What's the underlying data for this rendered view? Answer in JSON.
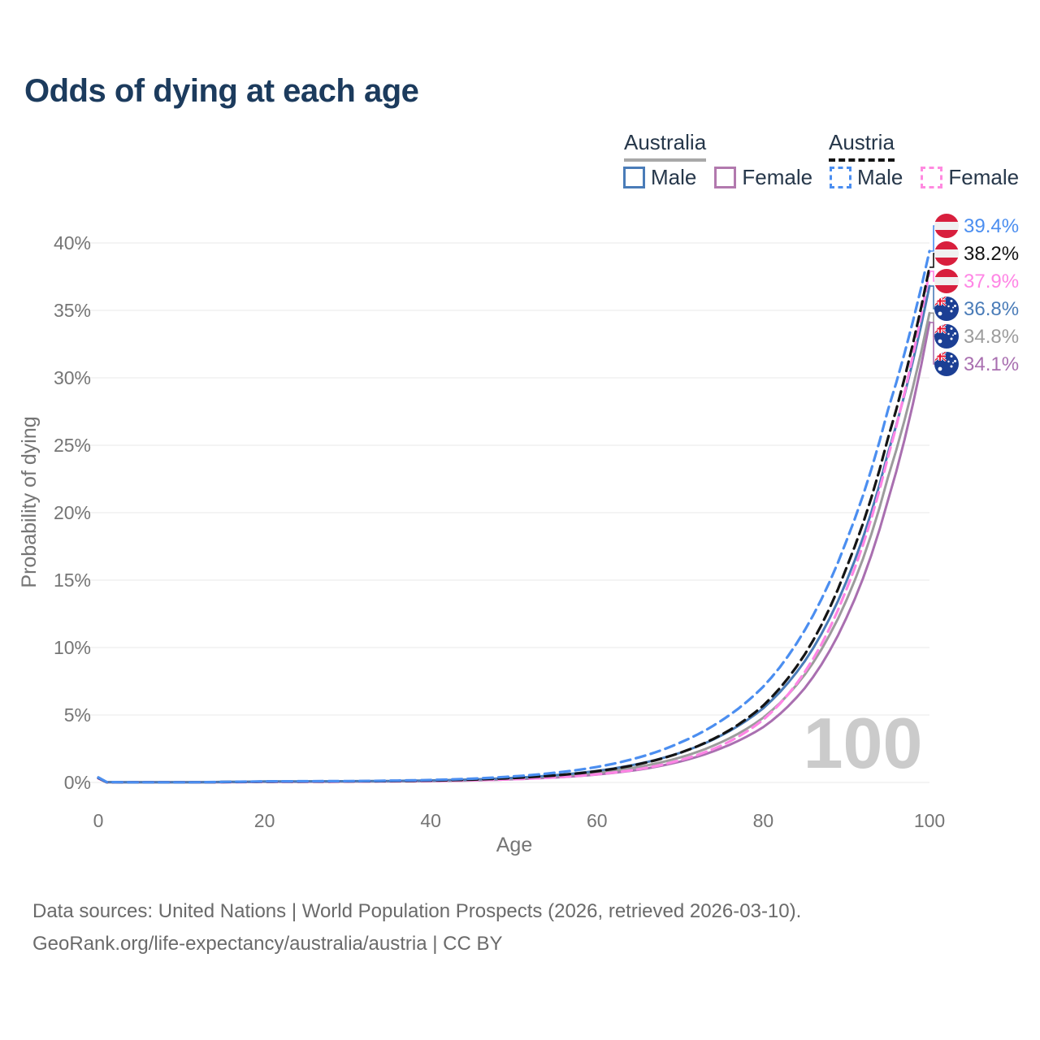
{
  "title": "Odds of dying at each age",
  "watermark": "100",
  "legend": {
    "groups": [
      {
        "country": "Australia",
        "line_style": "solid",
        "underline_color": "#a8a8a8",
        "items": [
          {
            "label": "Male",
            "color": "#4a7cb8"
          },
          {
            "label": "Female",
            "color": "#b279ae"
          }
        ]
      },
      {
        "country": "Austria",
        "line_style": "dashed",
        "underline_color": "#141414",
        "items": [
          {
            "label": "Male",
            "color": "#4b8ef0"
          },
          {
            "label": "Female",
            "color": "#ff8ae0"
          }
        ]
      }
    ]
  },
  "footer": {
    "line1": "Data sources: United Nations | World Population Prospects (2026, retrieved 2026-03-10).",
    "line2": "GeoRank.org/life-expectancy/australia/austria | CC BY"
  },
  "chart_data": {
    "type": "line",
    "title": "Odds of dying at each age",
    "xlabel": "Age",
    "ylabel": "Probability of dying",
    "x_ticks": [
      0,
      20,
      40,
      60,
      80,
      100
    ],
    "y_ticks": [
      "0%",
      "5%",
      "10%",
      "15%",
      "20%",
      "25%",
      "30%",
      "35%",
      "40%"
    ],
    "xlim": [
      0,
      100
    ],
    "ylim_percent": [
      0,
      42
    ],
    "grid": "horizontal",
    "legend_position": "top-right",
    "age_cursor": 100,
    "ages": [
      0,
      1,
      5,
      10,
      15,
      20,
      25,
      30,
      35,
      40,
      45,
      50,
      55,
      60,
      65,
      70,
      75,
      80,
      85,
      90,
      95,
      100
    ],
    "series": [
      {
        "name": "Austria - Male",
        "country": "Austria",
        "sex": "Male",
        "color": "#4b8ef0",
        "dashed": true,
        "flag": "austria",
        "end_label": "39.4%",
        "values": [
          0.36,
          0.03,
          0.01,
          0.01,
          0.04,
          0.08,
          0.09,
          0.1,
          0.13,
          0.18,
          0.28,
          0.45,
          0.72,
          1.15,
          1.85,
          2.95,
          4.6,
          7.1,
          11.3,
          17.9,
          27.6,
          39.4
        ]
      },
      {
        "name": "Austria - Both sexes",
        "country": "Austria",
        "sex": "Both",
        "color": "#141414",
        "dashed": true,
        "flag": "austria",
        "end_label": "38.2%",
        "values": [
          0.33,
          0.02,
          0.01,
          0.01,
          0.03,
          0.06,
          0.07,
          0.08,
          0.1,
          0.14,
          0.21,
          0.33,
          0.52,
          0.83,
          1.35,
          2.2,
          3.55,
          5.7,
          9.5,
          15.9,
          25.5,
          38.2
        ]
      },
      {
        "name": "Austria - Female",
        "country": "Austria",
        "sex": "Female",
        "color": "#ff85e5",
        "dashed": true,
        "flag": "austria",
        "end_label": "37.9%",
        "values": [
          0.3,
          0.02,
          0.01,
          0.01,
          0.02,
          0.04,
          0.05,
          0.06,
          0.08,
          0.1,
          0.16,
          0.24,
          0.38,
          0.6,
          0.98,
          1.65,
          2.75,
          4.65,
          8.2,
          14.3,
          24.1,
          37.9
        ]
      },
      {
        "name": "Australia - Male",
        "country": "Australia",
        "sex": "Male",
        "color": "#4a7cb8",
        "dashed": false,
        "flag": "australia",
        "end_label": "36.8%",
        "values": [
          0.38,
          0.03,
          0.01,
          0.01,
          0.04,
          0.07,
          0.08,
          0.09,
          0.11,
          0.15,
          0.22,
          0.34,
          0.54,
          0.86,
          1.38,
          2.2,
          3.5,
          5.5,
          9.0,
          14.9,
          24.4,
          36.8
        ]
      },
      {
        "name": "Australia - Both sexes",
        "country": "Australia",
        "sex": "Both",
        "color": "#9c9c9c",
        "dashed": false,
        "flag": "australia",
        "end_label": "34.8%",
        "values": [
          0.35,
          0.02,
          0.01,
          0.01,
          0.03,
          0.06,
          0.07,
          0.08,
          0.09,
          0.13,
          0.19,
          0.29,
          0.46,
          0.72,
          1.15,
          1.85,
          3.0,
          4.8,
          8.0,
          13.5,
          22.6,
          34.8
        ]
      },
      {
        "name": "Australia - Female",
        "country": "Australia",
        "sex": "Female",
        "color": "#a96fb0",
        "dashed": false,
        "flag": "australia",
        "end_label": "34.1%",
        "values": [
          0.32,
          0.02,
          0.01,
          0.01,
          0.02,
          0.04,
          0.05,
          0.06,
          0.08,
          0.1,
          0.15,
          0.24,
          0.37,
          0.59,
          0.94,
          1.55,
          2.55,
          4.1,
          7.0,
          12.2,
          20.9,
          34.1
        ]
      }
    ]
  }
}
